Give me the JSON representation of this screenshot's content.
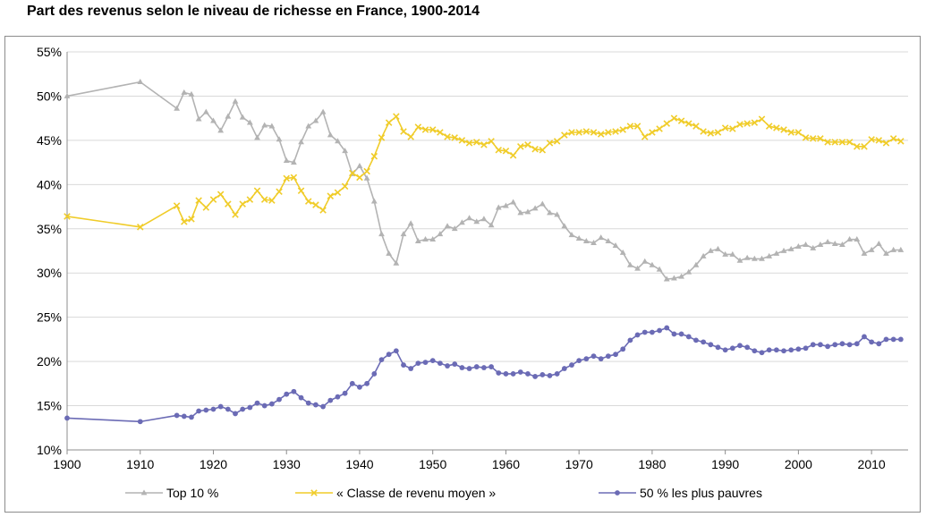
{
  "chart_data": {
    "type": "line",
    "title": "Part des revenus selon le niveau de richesse en France, 1900-2014",
    "xlabel": "",
    "ylabel": "",
    "xlim": [
      1900,
      2015
    ],
    "ylim": [
      10,
      55
    ],
    "x_ticks": [
      1900,
      1910,
      1920,
      1930,
      1940,
      1950,
      1960,
      1970,
      1980,
      1990,
      2000,
      2010
    ],
    "x_tick_labels": [
      "1900",
      "1910",
      "1920",
      "1930",
      "1940",
      "1950",
      "1960",
      "1970",
      "1980",
      "1990",
      "2000",
      "2010"
    ],
    "y_ticks": [
      10,
      15,
      20,
      25,
      30,
      35,
      40,
      45,
      50,
      55
    ],
    "y_tick_labels": [
      "10%",
      "15%",
      "20%",
      "25%",
      "30%",
      "35%",
      "40%",
      "45%",
      "50%",
      "55%"
    ],
    "grid": "horizontal",
    "legend_position": "bottom",
    "series": [
      {
        "name": "Top 10 %",
        "color": "#b3b3b3",
        "marker": "triangle",
        "x": [
          1900,
          1910,
          1915,
          1916,
          1917,
          1918,
          1919,
          1920,
          1921,
          1922,
          1923,
          1924,
          1925,
          1926,
          1927,
          1928,
          1929,
          1930,
          1931,
          1932,
          1933,
          1934,
          1935,
          1936,
          1937,
          1938,
          1939,
          1940,
          1941,
          1942,
          1943,
          1944,
          1945,
          1946,
          1947,
          1948,
          1949,
          1950,
          1951,
          1952,
          1953,
          1954,
          1955,
          1956,
          1957,
          1958,
          1959,
          1960,
          1961,
          1962,
          1963,
          1964,
          1965,
          1966,
          1967,
          1968,
          1969,
          1970,
          1971,
          1972,
          1973,
          1974,
          1975,
          1976,
          1977,
          1978,
          1979,
          1980,
          1981,
          1982,
          1983,
          1984,
          1985,
          1986,
          1987,
          1988,
          1989,
          1990,
          1991,
          1992,
          1993,
          1994,
          1995,
          1996,
          1997,
          1998,
          1999,
          2000,
          2001,
          2002,
          2003,
          2004,
          2005,
          2006,
          2007,
          2008,
          2009,
          2010,
          2011,
          2012,
          2013,
          2014
        ],
        "values": [
          50.0,
          51.6,
          48.6,
          50.4,
          50.2,
          47.4,
          48.2,
          47.2,
          46.1,
          47.7,
          49.4,
          47.6,
          47.0,
          45.3,
          46.7,
          46.6,
          45.1,
          42.7,
          42.5,
          44.8,
          46.6,
          47.2,
          48.2,
          45.6,
          44.9,
          43.8,
          41.2,
          42.1,
          40.7,
          38.1,
          34.4,
          32.2,
          31.1,
          34.4,
          35.6,
          33.6,
          33.8,
          33.8,
          34.4,
          35.3,
          35.0,
          35.7,
          36.2,
          35.8,
          36.1,
          35.4,
          37.4,
          37.6,
          38.0,
          36.8,
          36.9,
          37.3,
          37.8,
          36.8,
          36.6,
          35.3,
          34.3,
          33.9,
          33.6,
          33.4,
          34.0,
          33.6,
          33.1,
          32.3,
          30.9,
          30.5,
          31.3,
          30.9,
          30.4,
          29.3,
          29.4,
          29.6,
          30.1,
          30.9,
          31.9,
          32.5,
          32.7,
          32.1,
          32.1,
          31.4,
          31.7,
          31.6,
          31.6,
          31.9,
          32.2,
          32.5,
          32.7,
          33.0,
          33.2,
          32.8,
          33.2,
          33.5,
          33.3,
          33.2,
          33.8,
          33.8,
          32.2,
          32.6,
          33.3,
          32.2,
          32.6,
          32.6
        ]
      },
      {
        "name": "« Classe de revenu moyen »",
        "color": "#f0cc29",
        "marker": "x",
        "x": [
          1900,
          1910,
          1915,
          1916,
          1917,
          1918,
          1919,
          1920,
          1921,
          1922,
          1923,
          1924,
          1925,
          1926,
          1927,
          1928,
          1929,
          1930,
          1931,
          1932,
          1933,
          1934,
          1935,
          1936,
          1937,
          1938,
          1939,
          1940,
          1941,
          1942,
          1943,
          1944,
          1945,
          1946,
          1947,
          1948,
          1949,
          1950,
          1951,
          1952,
          1953,
          1954,
          1955,
          1956,
          1957,
          1958,
          1959,
          1960,
          1961,
          1962,
          1963,
          1964,
          1965,
          1966,
          1967,
          1968,
          1969,
          1970,
          1971,
          1972,
          1973,
          1974,
          1975,
          1976,
          1977,
          1978,
          1979,
          1980,
          1981,
          1982,
          1983,
          1984,
          1985,
          1986,
          1987,
          1988,
          1989,
          1990,
          1991,
          1992,
          1993,
          1994,
          1995,
          1996,
          1997,
          1998,
          1999,
          2000,
          2001,
          2002,
          2003,
          2004,
          2005,
          2006,
          2007,
          2008,
          2009,
          2010,
          2011,
          2012,
          2013,
          2014
        ],
        "values": [
          36.4,
          35.2,
          37.6,
          35.8,
          36.1,
          38.2,
          37.4,
          38.3,
          38.9,
          37.8,
          36.6,
          37.8,
          38.3,
          39.3,
          38.3,
          38.2,
          39.2,
          40.7,
          40.8,
          39.3,
          38.1,
          37.7,
          37.1,
          38.7,
          39.1,
          39.8,
          41.3,
          40.8,
          41.5,
          43.2,
          45.3,
          47.0,
          47.7,
          46.0,
          45.4,
          46.5,
          46.2,
          46.2,
          45.9,
          45.4,
          45.3,
          45.0,
          44.7,
          44.8,
          44.5,
          44.9,
          43.9,
          43.8,
          43.3,
          44.3,
          44.5,
          44.0,
          43.9,
          44.7,
          44.9,
          45.6,
          45.9,
          45.9,
          46.0,
          45.9,
          45.7,
          45.9,
          46.0,
          46.2,
          46.6,
          46.6,
          45.4,
          45.9,
          46.3,
          46.9,
          47.5,
          47.2,
          46.9,
          46.6,
          46.0,
          45.8,
          45.9,
          46.4,
          46.3,
          46.8,
          46.9,
          47.0,
          47.4,
          46.6,
          46.4,
          46.2,
          45.9,
          45.9,
          45.3,
          45.2,
          45.2,
          44.8,
          44.8,
          44.8,
          44.8,
          44.3,
          44.3,
          45.1,
          45.0,
          44.7,
          45.2,
          44.9
        ],
        "extra": [
          44.9
        ]
      },
      {
        "name": "50 % les plus pauvres",
        "color": "#6b6bb5",
        "marker": "circle",
        "x": [
          1900,
          1910,
          1915,
          1916,
          1917,
          1918,
          1919,
          1920,
          1921,
          1922,
          1923,
          1924,
          1925,
          1926,
          1927,
          1928,
          1929,
          1930,
          1931,
          1932,
          1933,
          1934,
          1935,
          1936,
          1937,
          1938,
          1939,
          1940,
          1941,
          1942,
          1943,
          1944,
          1945,
          1946,
          1947,
          1948,
          1949,
          1950,
          1951,
          1952,
          1953,
          1954,
          1955,
          1956,
          1957,
          1958,
          1959,
          1960,
          1961,
          1962,
          1963,
          1964,
          1965,
          1966,
          1967,
          1968,
          1969,
          1970,
          1971,
          1972,
          1973,
          1974,
          1975,
          1976,
          1977,
          1978,
          1979,
          1980,
          1981,
          1982,
          1983,
          1984,
          1985,
          1986,
          1987,
          1988,
          1989,
          1990,
          1991,
          1992,
          1993,
          1994,
          1995,
          1996,
          1997,
          1998,
          1999,
          2000,
          2001,
          2002,
          2003,
          2004,
          2005,
          2006,
          2007,
          2008,
          2009,
          2010,
          2011,
          2012,
          2013,
          2014
        ],
        "values": [
          13.6,
          13.2,
          13.9,
          13.8,
          13.7,
          14.4,
          14.5,
          14.6,
          14.9,
          14.6,
          14.1,
          14.6,
          14.8,
          15.3,
          15.0,
          15.2,
          15.7,
          16.3,
          16.6,
          15.9,
          15.3,
          15.1,
          14.9,
          15.6,
          16.0,
          16.4,
          17.5,
          17.1,
          17.5,
          18.6,
          20.2,
          20.8,
          21.2,
          19.6,
          19.2,
          19.8,
          19.9,
          20.1,
          19.8,
          19.5,
          19.7,
          19.3,
          19.2,
          19.4,
          19.3,
          19.4,
          18.7,
          18.6,
          18.6,
          18.8,
          18.6,
          18.3,
          18.5,
          18.4,
          18.6,
          19.2,
          19.6,
          20.1,
          20.3,
          20.6,
          20.3,
          20.6,
          20.8,
          21.4,
          22.4,
          23.0,
          23.3,
          23.3,
          23.5,
          23.8,
          23.1,
          23.1,
          22.8,
          22.4,
          22.2,
          21.9,
          21.6,
          21.3,
          21.5,
          21.8,
          21.6,
          21.2,
          21.0,
          21.3,
          21.3,
          21.2,
          21.3,
          21.4,
          21.5,
          21.9,
          21.9,
          21.7,
          21.9,
          22.0,
          21.9,
          22.0,
          22.8,
          22.2,
          22.0,
          22.5,
          22.5,
          22.5
        ]
      }
    ]
  }
}
